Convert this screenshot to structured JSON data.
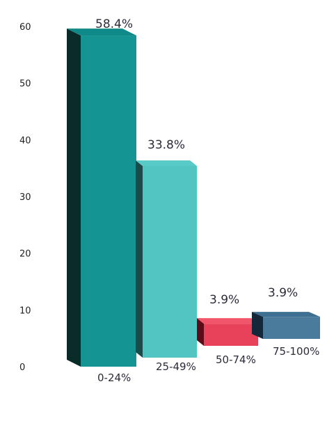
{
  "chart_data": {
    "type": "bar",
    "title": "",
    "xlabel": "",
    "ylabel": "",
    "ylim": [
      0,
      60
    ],
    "yticks": [
      0,
      10,
      20,
      30,
      40,
      50,
      60
    ],
    "grid": false,
    "style": "3d",
    "categories": [
      "0-24%",
      "25-49%",
      "50-74%",
      "75-100%"
    ],
    "values": [
      58.4,
      33.8,
      3.9,
      3.9
    ],
    "data_labels": [
      "58.4%",
      "33.8%",
      "3.9%",
      "3.9%"
    ],
    "colors": {
      "front": [
        "#149492",
        "#52c4c2",
        "#e8425a",
        "#4a7b9c"
      ],
      "side": [
        "#0b2a2a",
        "#1a4a4a",
        "#5a0c18",
        "#14283a"
      ],
      "top": [
        "#0f8a88",
        "#58cac8",
        "#f0556a",
        "#3e6f90"
      ]
    }
  }
}
